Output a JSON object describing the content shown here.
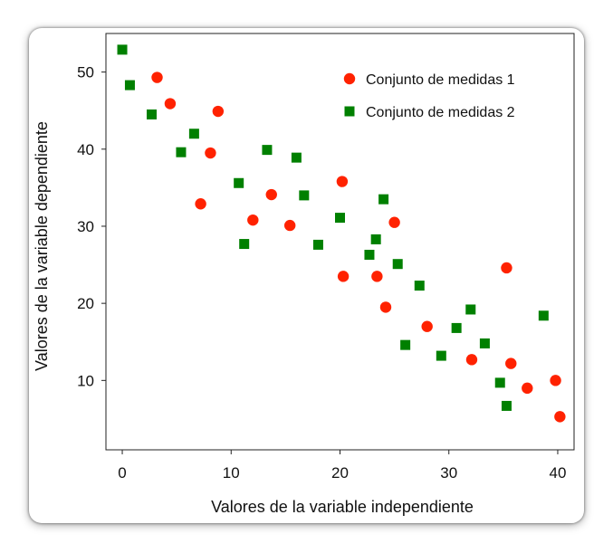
{
  "chart_data": {
    "type": "scatter",
    "xlabel": "Valores de la variable independiente",
    "ylabel": "Valores de la variable dependiente",
    "xlim": [
      -1.5,
      41.5
    ],
    "ylim": [
      1,
      55
    ],
    "xticks": [
      0,
      10,
      20,
      30,
      40
    ],
    "yticks": [
      10,
      20,
      30,
      40,
      50
    ],
    "grid": false,
    "legend_position": "top-right",
    "series": [
      {
        "name": "Conjunto de medidas 1",
        "marker": "circle",
        "color": "#ff2200",
        "points": [
          {
            "x": 3.2,
            "y": 49.3
          },
          {
            "x": 4.4,
            "y": 45.9
          },
          {
            "x": 8.8,
            "y": 44.9
          },
          {
            "x": 8.1,
            "y": 39.5
          },
          {
            "x": 7.2,
            "y": 32.9
          },
          {
            "x": 13.7,
            "y": 34.1
          },
          {
            "x": 12.0,
            "y": 30.8
          },
          {
            "x": 15.4,
            "y": 30.1
          },
          {
            "x": 20.2,
            "y": 35.8
          },
          {
            "x": 25.0,
            "y": 30.5
          },
          {
            "x": 20.3,
            "y": 23.5
          },
          {
            "x": 23.4,
            "y": 23.5
          },
          {
            "x": 24.2,
            "y": 19.5
          },
          {
            "x": 28.0,
            "y": 17.0
          },
          {
            "x": 32.1,
            "y": 12.7
          },
          {
            "x": 35.3,
            "y": 24.6
          },
          {
            "x": 35.7,
            "y": 12.2
          },
          {
            "x": 37.2,
            "y": 9.0
          },
          {
            "x": 39.8,
            "y": 10.0
          },
          {
            "x": 40.2,
            "y": 5.3
          }
        ]
      },
      {
        "name": "Conjunto de medidas 2",
        "marker": "square",
        "color": "#008000",
        "points": [
          {
            "x": 0.0,
            "y": 52.9
          },
          {
            "x": 0.7,
            "y": 48.3
          },
          {
            "x": 2.7,
            "y": 44.5
          },
          {
            "x": 5.4,
            "y": 39.6
          },
          {
            "x": 6.6,
            "y": 42.0
          },
          {
            "x": 10.7,
            "y": 35.6
          },
          {
            "x": 11.2,
            "y": 27.7
          },
          {
            "x": 13.3,
            "y": 39.9
          },
          {
            "x": 16.0,
            "y": 38.9
          },
          {
            "x": 16.7,
            "y": 34.0
          },
          {
            "x": 18.0,
            "y": 27.6
          },
          {
            "x": 20.0,
            "y": 31.1
          },
          {
            "x": 22.7,
            "y": 26.3
          },
          {
            "x": 23.3,
            "y": 28.3
          },
          {
            "x": 24.0,
            "y": 33.5
          },
          {
            "x": 25.3,
            "y": 25.1
          },
          {
            "x": 26.0,
            "y": 14.6
          },
          {
            "x": 27.3,
            "y": 22.3
          },
          {
            "x": 29.3,
            "y": 13.2
          },
          {
            "x": 30.7,
            "y": 16.8
          },
          {
            "x": 32.0,
            "y": 19.2
          },
          {
            "x": 33.3,
            "y": 14.8
          },
          {
            "x": 34.7,
            "y": 9.7
          },
          {
            "x": 35.3,
            "y": 6.7
          },
          {
            "x": 38.7,
            "y": 18.4
          }
        ]
      }
    ]
  }
}
